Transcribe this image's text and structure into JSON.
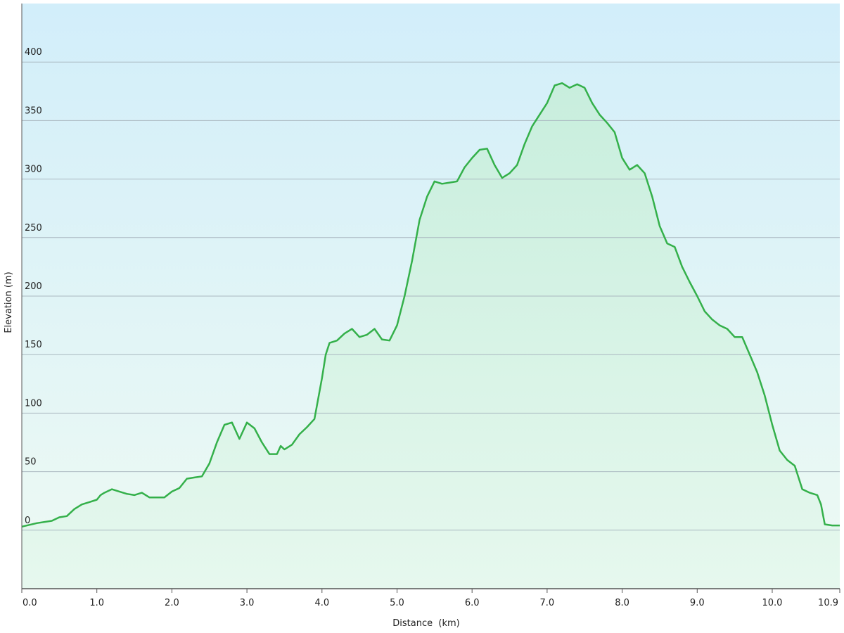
{
  "chart_data": {
    "type": "area",
    "x_label": "Distance  (km)",
    "y_label": "Elevation (m)",
    "xlim": [
      0,
      10.9
    ],
    "ylim": [
      -50,
      450
    ],
    "xticks": [
      {
        "value": 0,
        "label": "0.0"
      },
      {
        "value": 1,
        "label": "1.0"
      },
      {
        "value": 2,
        "label": "2.0"
      },
      {
        "value": 3,
        "label": "3.0"
      },
      {
        "value": 4,
        "label": "4.0"
      },
      {
        "value": 5,
        "label": "5.0"
      },
      {
        "value": 6,
        "label": "6.0"
      },
      {
        "value": 7,
        "label": "7.0"
      },
      {
        "value": 8,
        "label": "8.0"
      },
      {
        "value": 9,
        "label": "9.0"
      },
      {
        "value": 10,
        "label": "10.0"
      },
      10.9
    ],
    "yticks": [
      0,
      50,
      100,
      150,
      200,
      250,
      300,
      350,
      400
    ],
    "grid": true,
    "background_colors": [
      "#d2eefa",
      "#eefaf3"
    ],
    "fill_colors": [
      "#c8eedd",
      "#e6f8ee"
    ],
    "x": [
      0,
      0.2,
      0.4,
      0.5,
      0.6,
      0.7,
      0.8,
      0.9,
      1.0,
      1.05,
      1.1,
      1.2,
      1.3,
      1.4,
      1.5,
      1.6,
      1.7,
      1.8,
      1.9,
      2.0,
      2.1,
      2.2,
      2.3,
      2.4,
      2.5,
      2.6,
      2.7,
      2.8,
      2.9,
      3.0,
      3.1,
      3.2,
      3.3,
      3.4,
      3.45,
      3.5,
      3.6,
      3.7,
      3.8,
      3.9,
      4.0,
      4.05,
      4.1,
      4.2,
      4.3,
      4.4,
      4.5,
      4.6,
      4.7,
      4.8,
      4.9,
      5.0,
      5.1,
      5.2,
      5.3,
      5.4,
      5.5,
      5.6,
      5.7,
      5.8,
      5.9,
      6.0,
      6.1,
      6.2,
      6.3,
      6.4,
      6.5,
      6.6,
      6.7,
      6.8,
      6.9,
      7.0,
      7.1,
      7.2,
      7.3,
      7.4,
      7.5,
      7.6,
      7.7,
      7.8,
      7.9,
      8.0,
      8.1,
      8.2,
      8.3,
      8.4,
      8.5,
      8.6,
      8.7,
      8.8,
      8.9,
      9.0,
      9.1,
      9.2,
      9.3,
      9.4,
      9.5,
      9.6,
      9.7,
      9.8,
      9.9,
      10.0,
      10.1,
      10.2,
      10.3,
      10.4,
      10.5,
      10.6,
      10.65,
      10.7,
      10.8,
      10.9
    ],
    "series": [
      {
        "name": "Elevation",
        "color": "#34b04a",
        "values": [
          3,
          6,
          8,
          11,
          12,
          18,
          22,
          24,
          26,
          30,
          32,
          35,
          33,
          31,
          30,
          32,
          28,
          28,
          28,
          33,
          36,
          44,
          45,
          46,
          57,
          75,
          90,
          92,
          78,
          92,
          87,
          75,
          65,
          65,
          72,
          69,
          73,
          82,
          88,
          95,
          130,
          150,
          160,
          162,
          168,
          172,
          165,
          167,
          172,
          163,
          162,
          175,
          200,
          230,
          265,
          285,
          298,
          296,
          297,
          298,
          310,
          318,
          325,
          326,
          312,
          301,
          305,
          312,
          330,
          345,
          355,
          365,
          380,
          382,
          378,
          381,
          378,
          365,
          355,
          348,
          340,
          318,
          308,
          312,
          305,
          285,
          260,
          245,
          242,
          225,
          212,
          200,
          187,
          180,
          175,
          172,
          165,
          165,
          150,
          135,
          115,
          90,
          68,
          60,
          55,
          35,
          32,
          30,
          22,
          5,
          4,
          4
        ]
      }
    ]
  }
}
